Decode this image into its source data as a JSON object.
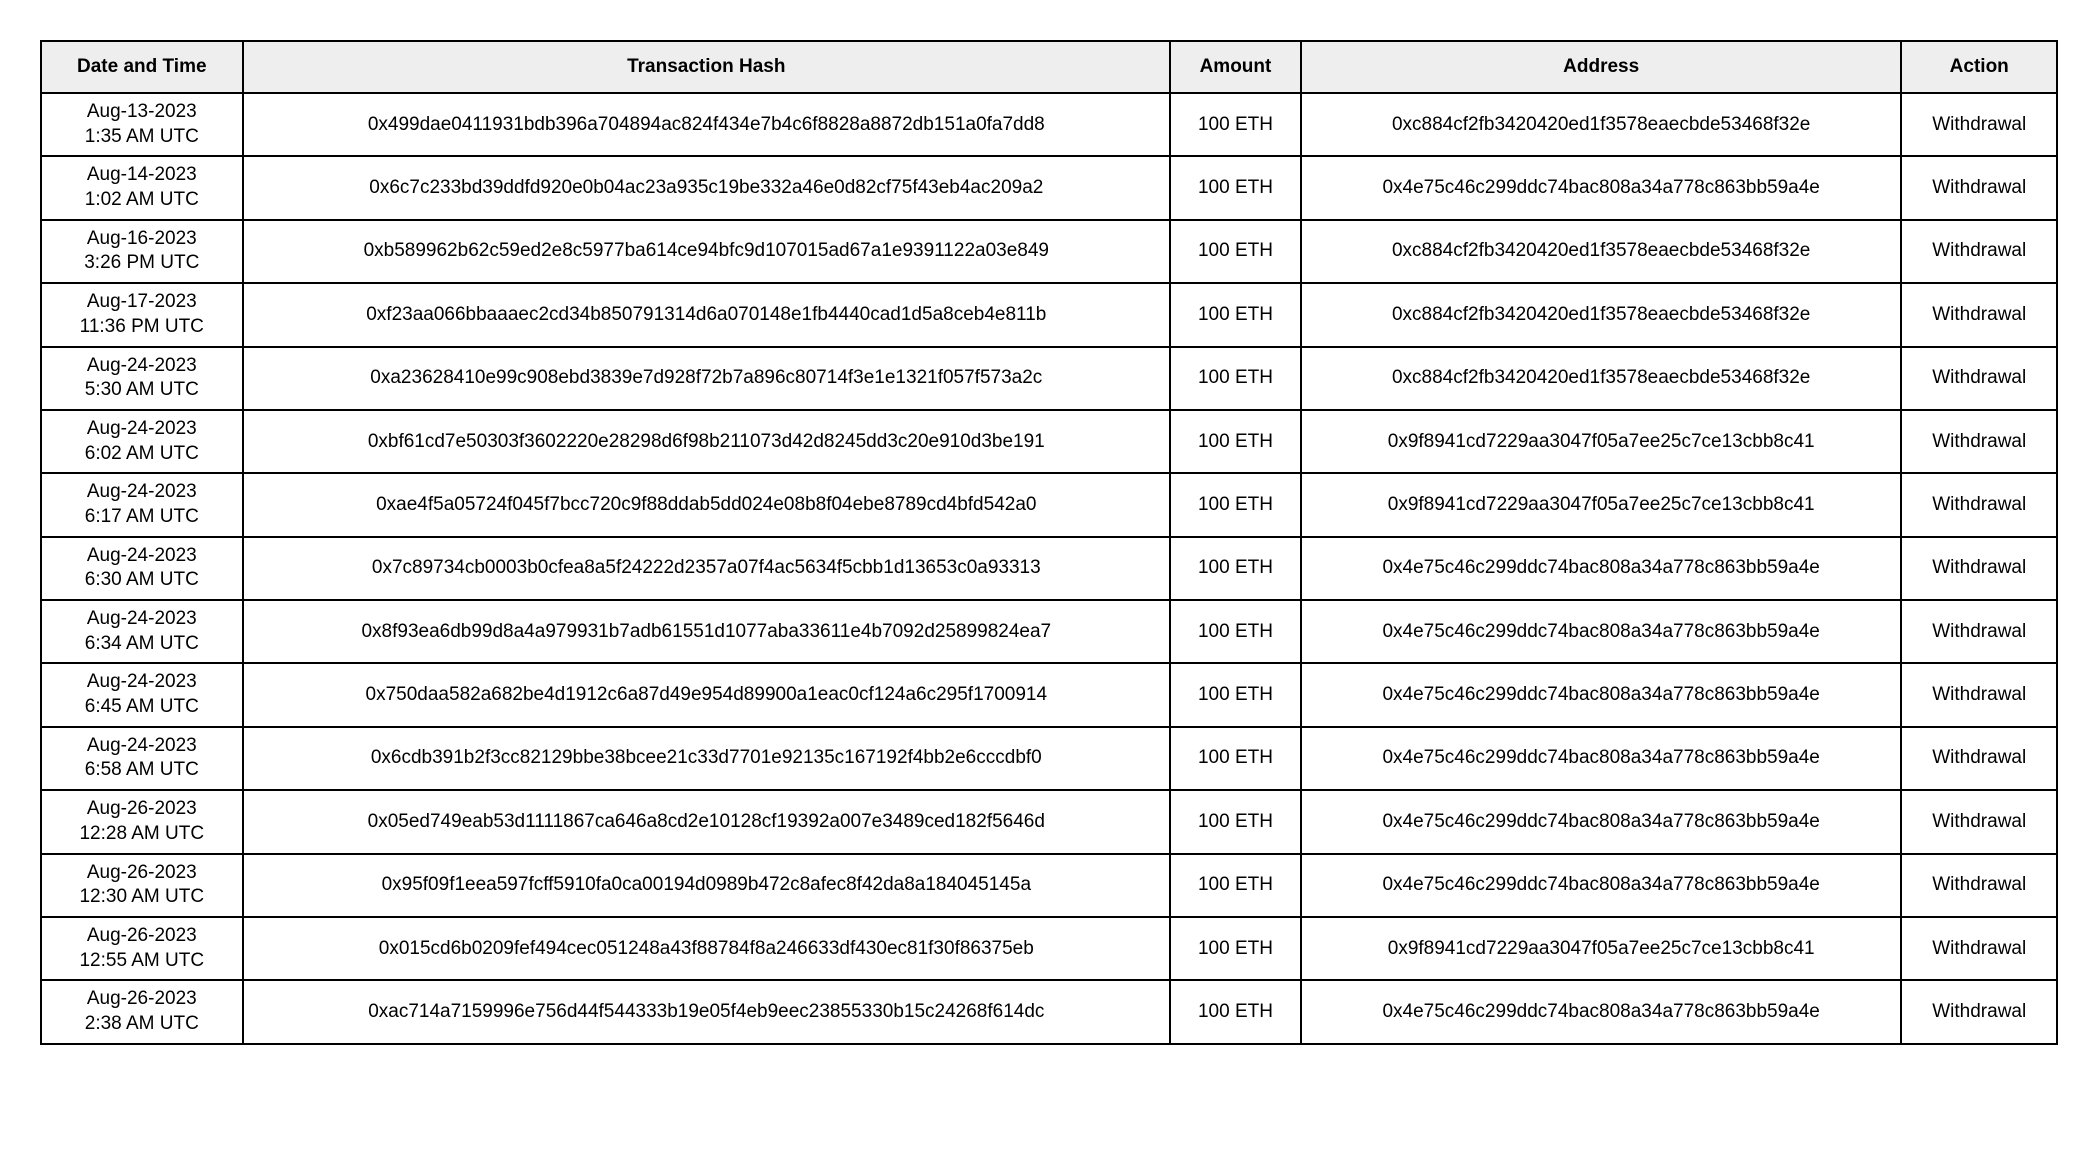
{
  "table": {
    "columns": [
      "Date and Time",
      "Transaction Hash",
      "Amount",
      "Address",
      "Action"
    ],
    "header_bg": "#eeeeee",
    "border_color": "#000000",
    "text_color": "#000000",
    "font_size_pt": 14,
    "rows": [
      {
        "date": "Aug-13-2023",
        "time": "1:35 AM UTC",
        "hash": "0x499dae0411931bdb396a704894ac824f434e7b4c6f8828a8872db151a0fa7dd8",
        "amount": "100 ETH",
        "address": "0xc884cf2fb3420420ed1f3578eaecbde53468f32e",
        "action": "Withdrawal"
      },
      {
        "date": "Aug-14-2023",
        "time": "1:02 AM UTC",
        "hash": "0x6c7c233bd39ddfd920e0b04ac23a935c19be332a46e0d82cf75f43eb4ac209a2",
        "amount": "100 ETH",
        "address": "0x4e75c46c299ddc74bac808a34a778c863bb59a4e",
        "action": "Withdrawal"
      },
      {
        "date": "Aug-16-2023",
        "time": "3:26 PM UTC",
        "hash": "0xb589962b62c59ed2e8c5977ba614ce94bfc9d107015ad67a1e9391122a03e849",
        "amount": "100 ETH",
        "address": "0xc884cf2fb3420420ed1f3578eaecbde53468f32e",
        "action": "Withdrawal"
      },
      {
        "date": "Aug-17-2023",
        "time": "11:36 PM UTC",
        "hash": "0xf23aa066bbaaaec2cd34b850791314d6a070148e1fb4440cad1d5a8ceb4e811b",
        "amount": "100 ETH",
        "address": "0xc884cf2fb3420420ed1f3578eaecbde53468f32e",
        "action": "Withdrawal"
      },
      {
        "date": "Aug-24-2023",
        "time": "5:30 AM UTC",
        "hash": "0xa23628410e99c908ebd3839e7d928f72b7a896c80714f3e1e1321f057f573a2c",
        "amount": "100 ETH",
        "address": "0xc884cf2fb3420420ed1f3578eaecbde53468f32e",
        "action": "Withdrawal"
      },
      {
        "date": "Aug-24-2023",
        "time": "6:02 AM UTC",
        "hash": "0xbf61cd7e50303f3602220e28298d6f98b211073d42d8245dd3c20e910d3be191",
        "amount": "100 ETH",
        "address": "0x9f8941cd7229aa3047f05a7ee25c7ce13cbb8c41",
        "action": "Withdrawal"
      },
      {
        "date": "Aug-24-2023",
        "time": "6:17 AM UTC",
        "hash": "0xae4f5a05724f045f7bcc720c9f88ddab5dd024e08b8f04ebe8789cd4bfd542a0",
        "amount": "100 ETH",
        "address": "0x9f8941cd7229aa3047f05a7ee25c7ce13cbb8c41",
        "action": "Withdrawal"
      },
      {
        "date": "Aug-24-2023",
        "time": "6:30 AM UTC",
        "hash": "0x7c89734cb0003b0cfea8a5f24222d2357a07f4ac5634f5cbb1d13653c0a93313",
        "amount": "100 ETH",
        "address": "0x4e75c46c299ddc74bac808a34a778c863bb59a4e",
        "action": "Withdrawal"
      },
      {
        "date": "Aug-24-2023",
        "time": "6:34 AM UTC",
        "hash": "0x8f93ea6db99d8a4a979931b7adb61551d1077aba33611e4b7092d25899824ea7",
        "amount": "100 ETH",
        "address": "0x4e75c46c299ddc74bac808a34a778c863bb59a4e",
        "action": "Withdrawal"
      },
      {
        "date": "Aug-24-2023",
        "time": "6:45 AM UTC",
        "hash": "0x750daa582a682be4d1912c6a87d49e954d89900a1eac0cf124a6c295f1700914",
        "amount": "100 ETH",
        "address": "0x4e75c46c299ddc74bac808a34a778c863bb59a4e",
        "action": "Withdrawal"
      },
      {
        "date": "Aug-24-2023",
        "time": "6:58 AM UTC",
        "hash": "0x6cdb391b2f3cc82129bbe38bcee21c33d7701e92135c167192f4bb2e6cccdbf0",
        "amount": "100 ETH",
        "address": "0x4e75c46c299ddc74bac808a34a778c863bb59a4e",
        "action": "Withdrawal"
      },
      {
        "date": "Aug-26-2023",
        "time": "12:28 AM UTC",
        "hash": "0x05ed749eab53d1111867ca646a8cd2e10128cf19392a007e3489ced182f5646d",
        "amount": "100 ETH",
        "address": "0x4e75c46c299ddc74bac808a34a778c863bb59a4e",
        "action": "Withdrawal"
      },
      {
        "date": "Aug-26-2023",
        "time": "12:30 AM UTC",
        "hash": "0x95f09f1eea597fcff5910fa0ca00194d0989b472c8afec8f42da8a184045145a",
        "amount": "100 ETH",
        "address": "0x4e75c46c299ddc74bac808a34a778c863bb59a4e",
        "action": "Withdrawal"
      },
      {
        "date": "Aug-26-2023",
        "time": "12:55 AM UTC",
        "hash": "0x015cd6b0209fef494cec051248a43f88784f8a246633df430ec81f30f86375eb",
        "amount": "100 ETH",
        "address": "0x9f8941cd7229aa3047f05a7ee25c7ce13cbb8c41",
        "action": "Withdrawal"
      },
      {
        "date": "Aug-26-2023",
        "time": "2:38 AM UTC",
        "hash": "0xac714a7159996e756d44f544333b19e05f4eb9eec23855330b15c24268f614dc",
        "amount": "100 ETH",
        "address": "0x4e75c46c299ddc74bac808a34a778c863bb59a4e",
        "action": "Withdrawal"
      }
    ]
  }
}
